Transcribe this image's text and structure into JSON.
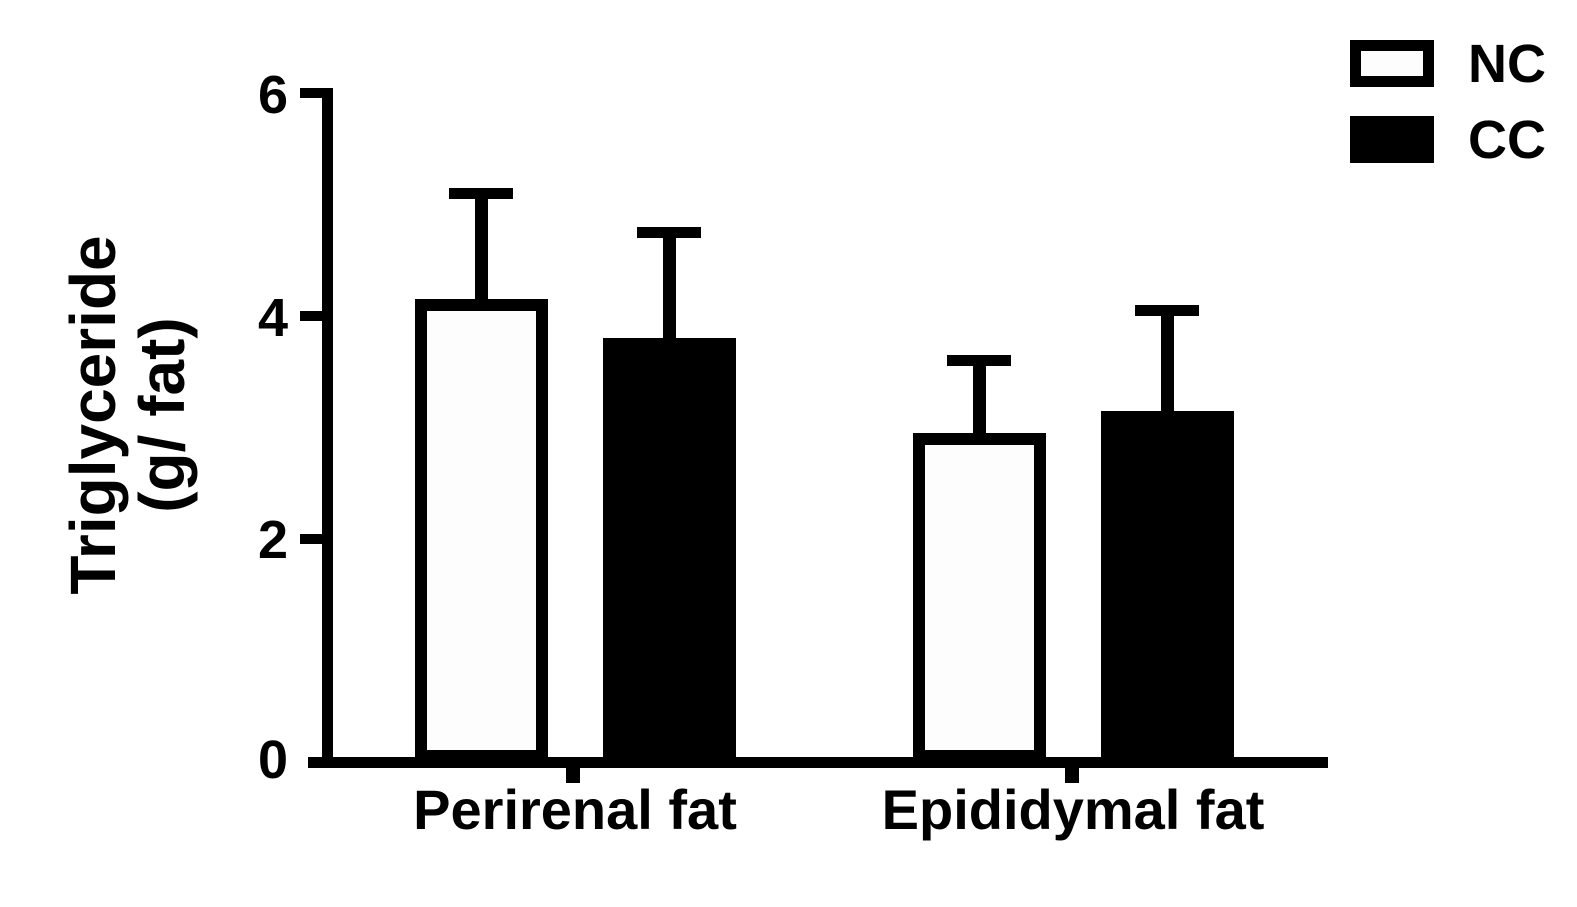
{
  "chart_data": {
    "type": "bar",
    "title": "",
    "ylabel": "Triglyceride (g/ fat)",
    "ylabel_lines": [
      "Triglyceride",
      "(g/ fat)"
    ],
    "xlabel": "",
    "categories": [
      "Perirenal fat",
      "Epididymal fat"
    ],
    "series": [
      {
        "name": "NC",
        "fill": "#fdfdfd",
        "outline": "#000000",
        "values": [
          4.15,
          2.95
        ],
        "errors": [
          1.0,
          0.7
        ]
      },
      {
        "name": "CC",
        "fill": "#000000",
        "outline": "#000000",
        "values": [
          3.8,
          3.15
        ],
        "errors": [
          1.0,
          0.95
        ]
      }
    ],
    "error_direction": "up",
    "y_ticks": [
      0,
      2,
      4,
      6
    ],
    "y_tick_labels": [
      "6",
      "4",
      "2",
      "0"
    ],
    "ylim": [
      0,
      6
    ],
    "grid": false,
    "legend_position": "top-right",
    "axis_color": "#000000",
    "background_color": "#ffffff"
  }
}
